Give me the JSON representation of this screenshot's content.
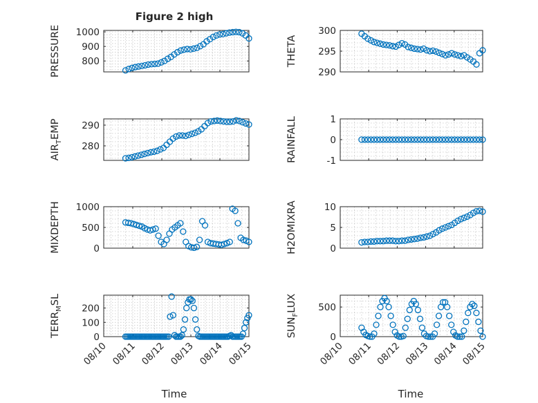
{
  "figure": {
    "title": "Figure 2 high",
    "xlabel": "Time",
    "xdomain": [
      "2024-08-10",
      "2024-08-15"
    ],
    "xtick_labels": [
      "08/10",
      "08/11",
      "08/12",
      "08/13",
      "08/14",
      "08/15"
    ],
    "marker": "circle",
    "marker_color": "#0072BD",
    "grid": true,
    "minor_grid": true
  },
  "chart_data": [
    {
      "type": "scatter",
      "position": "row1-left",
      "ylabel_main": "PRESSURE",
      "ylabel_sub": "",
      "ylabel_tail": "",
      "ylim": [
        725,
        1010
      ],
      "yticks": [
        800,
        900,
        1000
      ],
      "series": [
        {
          "start": "2024-08-10T18:00",
          "end": "2024-08-14T24:00",
          "values": [
            735,
            745,
            752,
            758,
            762,
            766,
            770,
            775,
            778,
            780,
            782,
            790,
            800,
            815,
            828,
            845,
            860,
            872,
            878,
            882,
            880,
            885,
            890,
            902,
            915,
            935,
            950,
            965,
            975,
            982,
            985,
            990,
            995,
            998,
            1000,
            998,
            990,
            975,
            955
          ]
        }
      ]
    },
    {
      "type": "scatter",
      "position": "row1-right",
      "ylabel_main": "THETA",
      "ylabel_sub": "",
      "ylabel_tail": "",
      "ylim": [
        290,
        300
      ],
      "yticks": [
        290,
        295,
        300
      ],
      "series": [
        {
          "start": "2024-08-10T18:00",
          "end": "2024-08-14T24:00",
          "values": [
            299.2,
            298.6,
            298.0,
            297.6,
            297.2,
            297.0,
            296.8,
            296.6,
            296.5,
            296.4,
            296.2,
            296.1,
            296.5,
            296.9,
            296.6,
            296.0,
            295.8,
            295.6,
            295.5,
            295.4,
            295.6,
            295.2,
            295.0,
            295.1,
            294.9,
            294.6,
            294.3,
            294.0,
            294.2,
            294.5,
            294.2,
            294.0,
            293.8,
            294.0,
            293.5,
            293.0,
            292.5,
            291.8,
            294.5,
            295.2
          ]
        }
      ]
    },
    {
      "type": "scatter",
      "position": "row2-left",
      "ylabel_main": "AIR",
      "ylabel_sub": "T",
      "ylabel_tail": "EMP",
      "ylim": [
        273,
        293
      ],
      "yticks": [
        280,
        290
      ],
      "series": [
        {
          "start": "2024-08-10T18:00",
          "end": "2024-08-14T24:00",
          "values": [
            274.0,
            274.2,
            274.5,
            274.9,
            275.3,
            275.7,
            276.1,
            276.5,
            276.9,
            277.2,
            277.6,
            278.3,
            279.0,
            280.5,
            282.0,
            283.5,
            284.5,
            285.0,
            285.0,
            284.8,
            285.3,
            285.8,
            286.3,
            287.0,
            288.0,
            289.5,
            291.0,
            291.8,
            292.0,
            292.2,
            292.0,
            291.8,
            291.6,
            291.6,
            291.8,
            292.3,
            292.0,
            291.4,
            290.8,
            290.3
          ]
        }
      ]
    },
    {
      "type": "scatter",
      "position": "row2-right",
      "ylabel_main": "RAINFALL",
      "ylabel_sub": "",
      "ylabel_tail": "",
      "ylim": [
        -1,
        1
      ],
      "yticks": [
        -1,
        0,
        1
      ],
      "series": [
        {
          "start": "2024-08-10T18:00",
          "end": "2024-08-14T24:00",
          "values": [
            0,
            0,
            0,
            0,
            0,
            0,
            0,
            0,
            0,
            0,
            0,
            0,
            0,
            0,
            0,
            0,
            0,
            0,
            0,
            0,
            0,
            0,
            0,
            0,
            0,
            0,
            0,
            0,
            0,
            0,
            0,
            0,
            0,
            0,
            0,
            0,
            0,
            0,
            0,
            0
          ]
        }
      ]
    },
    {
      "type": "scatter",
      "position": "row3-left",
      "ylabel_main": "MIXDEPTH",
      "ylabel_sub": "",
      "ylabel_tail": "",
      "ylim": [
        0,
        1000
      ],
      "yticks": [
        0,
        500,
        1000
      ],
      "series": [
        {
          "start": "2024-08-10T18:00",
          "end": "2024-08-14T24:00",
          "values": [
            620,
            610,
            600,
            580,
            560,
            540,
            520,
            480,
            450,
            430,
            450,
            470,
            300,
            150,
            100,
            200,
            350,
            450,
            500,
            550,
            600,
            400,
            150,
            50,
            20,
            10,
            30,
            200,
            650,
            550,
            150,
            120,
            110,
            100,
            90,
            80,
            100,
            120,
            150,
            950,
            900,
            600,
            250,
            200,
            180,
            150
          ]
        }
      ]
    },
    {
      "type": "scatter",
      "position": "row3-right",
      "ylabel_main": "H2OMIXRA",
      "ylabel_sub": "",
      "ylabel_tail": "",
      "ylim": [
        0,
        10
      ],
      "yticks": [
        0,
        5,
        10
      ],
      "series": [
        {
          "start": "2024-08-10T18:00",
          "end": "2024-08-14T24:00",
          "values": [
            1.4,
            1.5,
            1.5,
            1.6,
            1.6,
            1.7,
            1.7,
            1.7,
            1.8,
            1.8,
            1.8,
            1.7,
            1.7,
            1.8,
            1.8,
            2.0,
            2.1,
            2.2,
            2.3,
            2.5,
            2.6,
            2.8,
            3.0,
            3.4,
            3.8,
            4.3,
            4.7,
            5.0,
            5.3,
            5.6,
            6.1,
            6.6,
            7.0,
            7.3,
            7.6,
            8.0,
            8.5,
            8.9,
            9.0,
            8.8
          ]
        }
      ]
    },
    {
      "type": "scatter",
      "position": "row4-left",
      "ylabel_main": "TERR",
      "ylabel_sub": "M",
      "ylabel_tail": "SL",
      "ylim": [
        0,
        290
      ],
      "yticks": [
        0,
        100,
        200
      ],
      "series": [
        {
          "start": "2024-08-10T18:00",
          "end": "2024-08-14T24:00",
          "values": [
            0,
            0,
            0,
            0,
            0,
            0,
            0,
            0,
            0,
            0,
            0,
            0,
            0,
            0,
            0,
            0,
            0,
            0,
            0,
            0,
            0,
            0,
            0,
            0,
            0,
            0,
            0,
            0,
            0,
            0,
            140,
            280,
            150,
            10,
            0,
            0,
            0,
            0,
            10,
            50,
            120,
            200,
            240,
            260,
            260,
            250,
            200,
            120,
            50,
            5,
            0,
            0,
            0,
            0,
            0,
            0,
            0,
            0,
            0,
            0,
            0,
            0,
            0,
            0,
            0,
            0,
            0,
            0,
            0,
            0,
            5,
            10,
            0,
            0,
            0,
            0,
            0,
            0,
            0,
            20,
            60,
            100,
            130,
            150
          ]
        }
      ]
    },
    {
      "type": "scatter",
      "position": "row4-right",
      "ylabel_main": "SUN",
      "ylabel_sub": "F",
      "ylabel_tail": "LUX",
      "ylim": [
        0,
        700
      ],
      "yticks": [
        0,
        500
      ],
      "series": [
        {
          "start": "2024-08-10T18:00",
          "end": "2024-08-14T24:00",
          "values": [
            150,
            80,
            30,
            10,
            0,
            0,
            50,
            200,
            350,
            500,
            600,
            650,
            600,
            500,
            350,
            200,
            80,
            20,
            0,
            0,
            10,
            150,
            300,
            450,
            550,
            600,
            550,
            450,
            300,
            150,
            50,
            10,
            0,
            0,
            0,
            50,
            200,
            350,
            500,
            580,
            580,
            500,
            350,
            200,
            80,
            20,
            0,
            0,
            0,
            100,
            250,
            400,
            500,
            550,
            520,
            400,
            250,
            100,
            0
          ]
        }
      ]
    }
  ]
}
